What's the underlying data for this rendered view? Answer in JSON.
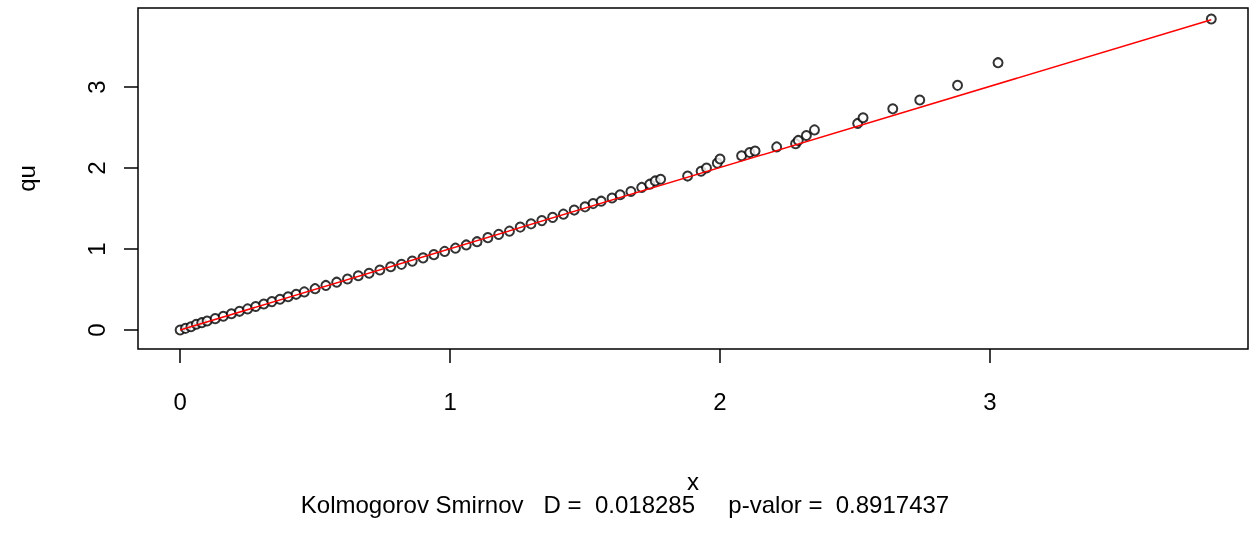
{
  "chart_data": {
    "type": "scatter",
    "xlabel": "x",
    "ylabel": "qu",
    "annotations": [
      "Kolmogorov Smirnov   D =  0.018285     p-valor =  0.8917437"
    ],
    "xlim": [
      -0.156,
      3.956
    ],
    "ylim": [
      -0.235,
      3.975
    ],
    "xticks": [
      0,
      1,
      2,
      3
    ],
    "yticks": [
      0,
      1,
      2,
      3
    ],
    "grid": false,
    "series": [
      {
        "color": "#000000",
        "marker": "circle",
        "x": [
          0,
          0.02,
          0.04,
          0.06,
          0.08,
          0.1,
          0.13,
          0.16,
          0.19,
          0.22,
          0.25,
          0.28,
          0.31,
          0.34,
          0.37,
          0.4,
          0.43,
          0.46,
          0.5,
          0.54,
          0.58,
          0.62,
          0.66,
          0.7,
          0.74,
          0.78,
          0.82,
          0.86,
          0.9,
          0.94,
          0.98,
          1.02,
          1.06,
          1.1,
          1.14,
          1.18,
          1.22,
          1.26,
          1.3,
          1.34,
          1.38,
          1.42,
          1.46,
          1.5,
          1.53,
          1.56,
          1.6,
          1.63,
          1.67,
          1.71,
          1.74,
          1.76,
          1.78,
          1.88,
          1.93,
          1.95,
          1.99,
          2.0,
          2.08,
          2.11,
          2.13,
          2.21,
          2.28,
          2.29,
          2.32,
          2.35,
          2.51,
          2.53,
          2.64,
          2.74,
          2.88,
          3.03,
          3.82
        ],
        "values": [
          0,
          0.02,
          0.04,
          0.07,
          0.09,
          0.11,
          0.14,
          0.17,
          0.2,
          0.23,
          0.26,
          0.29,
          0.32,
          0.35,
          0.38,
          0.41,
          0.44,
          0.47,
          0.51,
          0.55,
          0.59,
          0.63,
          0.67,
          0.7,
          0.74,
          0.78,
          0.81,
          0.85,
          0.89,
          0.93,
          0.97,
          1.01,
          1.05,
          1.09,
          1.14,
          1.18,
          1.22,
          1.27,
          1.31,
          1.35,
          1.39,
          1.43,
          1.48,
          1.52,
          1.56,
          1.59,
          1.63,
          1.67,
          1.71,
          1.76,
          1.8,
          1.84,
          1.86,
          1.9,
          1.96,
          2.0,
          2.06,
          2.11,
          2.15,
          2.19,
          2.21,
          2.26,
          2.3,
          2.34,
          2.4,
          2.47,
          2.55,
          2.62,
          2.73,
          2.84,
          3.02,
          3.3,
          3.84
        ]
      },
      {
        "type": "line",
        "color": "#ff0000",
        "marker": "none",
        "line_style": "solid",
        "x": [
          0,
          3.82
        ],
        "values": [
          0,
          3.83
        ]
      }
    ]
  }
}
